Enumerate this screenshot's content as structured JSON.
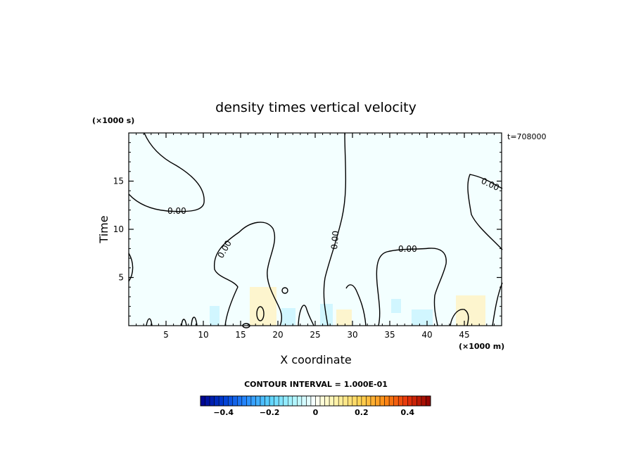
{
  "chart_data": {
    "type": "contour",
    "title": "density times vertical velocity",
    "xlabel": "X coordinate",
    "ylabel": "Time",
    "x_unit": "(×1000 m)",
    "y_unit": "(×1000 s)",
    "time_stamp": "t=708000",
    "xlim": [
      0,
      50
    ],
    "ylim": [
      0,
      20
    ],
    "x_ticks": [
      5,
      10,
      15,
      20,
      25,
      30,
      35,
      40,
      45
    ],
    "y_ticks": [
      5,
      10,
      15
    ],
    "contour_labels": [
      "0.00",
      "0.00",
      "0.00",
      "0.00",
      "0.00"
    ],
    "colorbar": {
      "title": "CONTOUR INTERVAL = 1.000E-01",
      "min": -0.5,
      "max": 0.5,
      "step": 0.02,
      "tick_values": [
        -0.4,
        -0.2,
        0,
        0.2,
        0.4
      ],
      "tick_labels": [
        "−0.4",
        "−0.2",
        "0",
        "0.2",
        "0.4"
      ]
    },
    "colors": {
      "background_fill": "#f3ffff",
      "positive_patch": "#fff2c2",
      "negative_patch": "#c8f4ff",
      "contour_line": "#000000"
    }
  }
}
